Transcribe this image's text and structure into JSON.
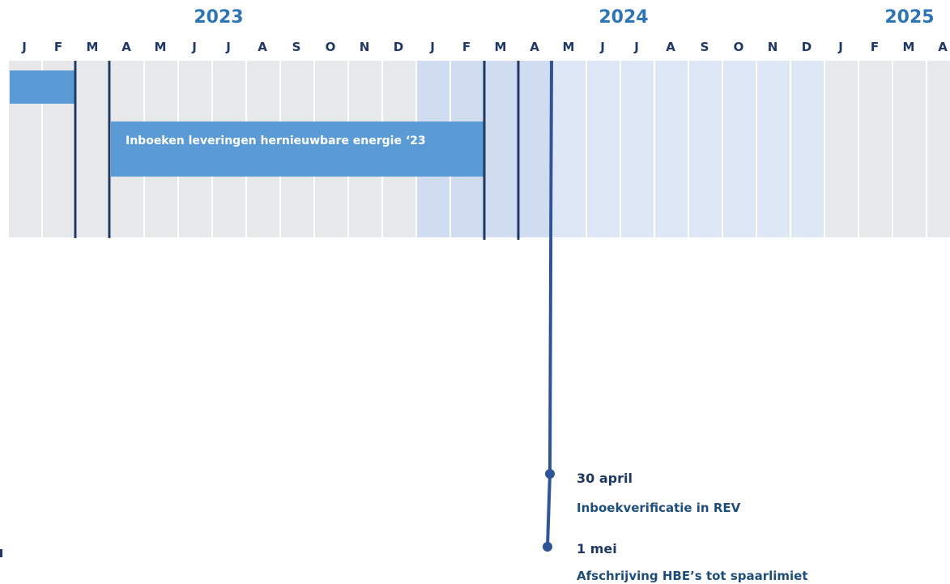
{
  "header": {
    "years": [
      "2023",
      "2024",
      "2025"
    ],
    "months": [
      "J",
      "F",
      "M",
      "A",
      "M",
      "J",
      "J",
      "A",
      "S",
      "O",
      "N",
      "D",
      "J",
      "F",
      "M",
      "A",
      "M",
      "J",
      "J",
      "A",
      "S",
      "O",
      "N",
      "D",
      "J",
      "F",
      "M",
      "A"
    ]
  },
  "bars": [
    {
      "label": "Inboeken leveringen hernieuwbare energie ‘23"
    }
  ],
  "milestones": [
    {
      "date": "30 april",
      "description": "Inboekverificatie in REV"
    },
    {
      "date": "1 mei",
      "description": "Afschrijving HBE’s tot spaarlimiet"
    }
  ]
}
